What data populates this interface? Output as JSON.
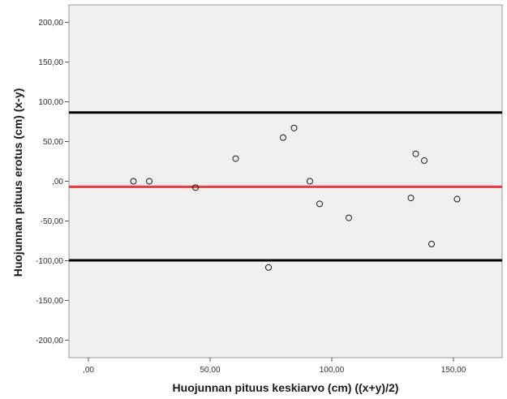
{
  "chart_data": {
    "type": "scatter",
    "xlabel": "Huojunnan pituus keskiarvo (cm) ((x+y)/2)",
    "ylabel": "Huojunnan pituus erotus (cm) (x-y)",
    "xlim": [
      -8,
      170
    ],
    "ylim": [
      -222,
      222
    ],
    "x_ticks": [
      0,
      50,
      100,
      150
    ],
    "x_tick_labels": [
      ",00",
      "50,00",
      "100,00",
      "150,00"
    ],
    "y_ticks": [
      200,
      150,
      100,
      50,
      0,
      -50,
      -100,
      -150,
      -200
    ],
    "y_tick_labels": [
      "200,00",
      "150,00",
      "100,00",
      "50,00",
      ",00",
      "-50,00",
      "-100,00",
      "-150,00",
      "-200,00"
    ],
    "grid": false,
    "points": [
      {
        "x": 18.5,
        "y": 0
      },
      {
        "x": 25,
        "y": 0
      },
      {
        "x": 44,
        "y": -8
      },
      {
        "x": 60.5,
        "y": 28.5
      },
      {
        "x": 74,
        "y": -108.5
      },
      {
        "x": 80,
        "y": 55
      },
      {
        "x": 84.5,
        "y": 67
      },
      {
        "x": 91,
        "y": 0
      },
      {
        "x": 95,
        "y": -28.5
      },
      {
        "x": 107,
        "y": -46
      },
      {
        "x": 132.5,
        "y": -21
      },
      {
        "x": 134.5,
        "y": 34.5
      },
      {
        "x": 138,
        "y": 26
      },
      {
        "x": 141,
        "y": -79
      },
      {
        "x": 151.5,
        "y": -22.5
      }
    ],
    "reference_lines": [
      {
        "y": 86.5,
        "color": "#000000",
        "width": 3
      },
      {
        "y": -7,
        "color": "#e83a3a",
        "width": 3
      },
      {
        "y": -99.5,
        "color": "#000000",
        "width": 3
      }
    ],
    "colors": {
      "plot_background": "#f0f0f0",
      "marker_stroke": "#1a1a1a"
    }
  }
}
